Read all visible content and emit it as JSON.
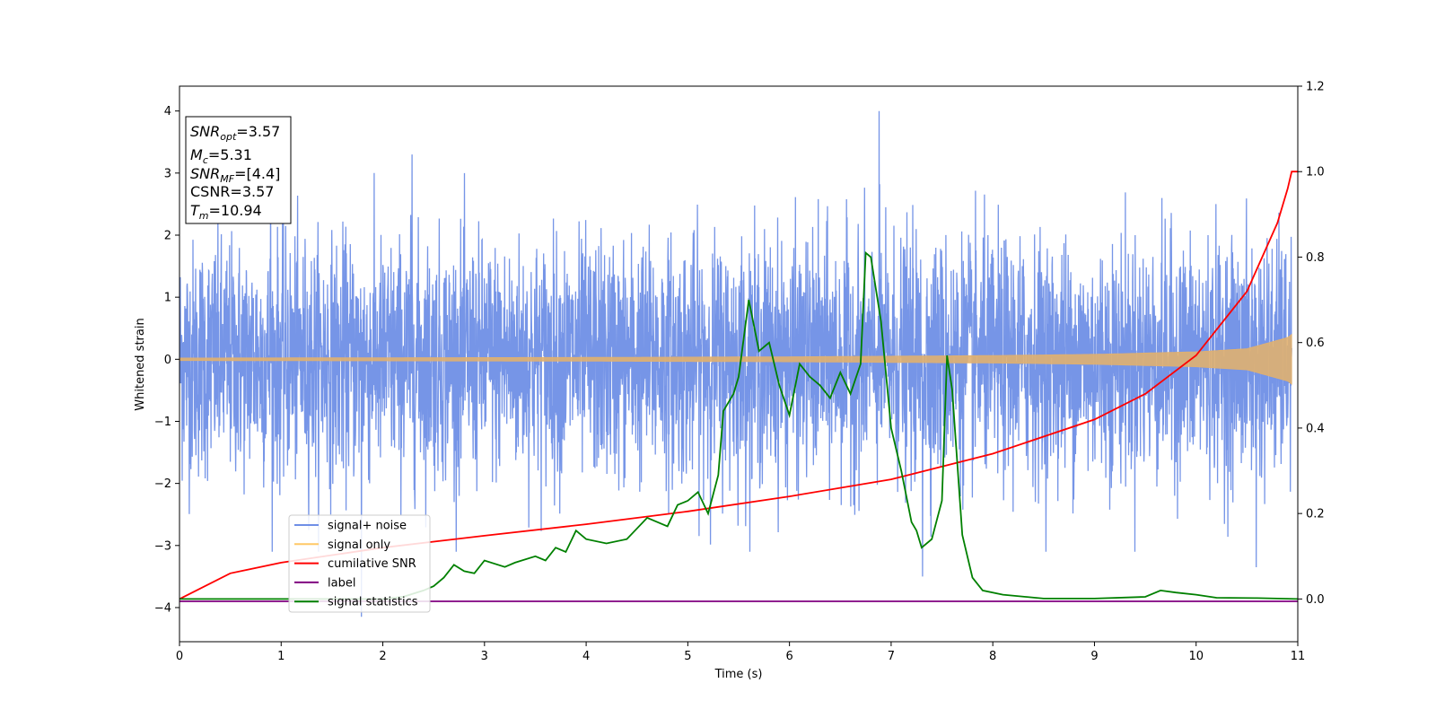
{
  "chart_data": {
    "type": "line",
    "xlabel": "Time (s)",
    "ylabel": "Whitened strain",
    "xlim": [
      0,
      11
    ],
    "ylim": [
      -4.55,
      4.4
    ],
    "y2lim": [
      -0.1,
      1.2
    ],
    "x_ticks": [
      "0",
      "1",
      "2",
      "3",
      "4",
      "5",
      "6",
      "7",
      "8",
      "9",
      "10",
      "11"
    ],
    "y_ticks": [
      "4",
      "3",
      "2",
      "1",
      "0",
      "−1",
      "−2",
      "−3",
      "−4"
    ],
    "y2_ticks": [
      "1.2",
      "1.0",
      "0.8",
      "0.6",
      "0.4",
      "0.2",
      "0.0"
    ],
    "grid": false,
    "legend_position": "lower-left",
    "legend": [
      {
        "label": "signal+ noise",
        "color": "#6f8fe6"
      },
      {
        "label": "signal only",
        "color": "#ffc866"
      },
      {
        "label": "cumilative SNR",
        "color": "#ff0000"
      },
      {
        "label": "label",
        "color": "#800080"
      },
      {
        "label": "signal statistics",
        "color": "#008000"
      }
    ],
    "stats_box": {
      "line1": {
        "var": "SNR",
        "sub": "opt",
        "rest": "=3.57"
      },
      "line2": {
        "var": "M",
        "sub": "c",
        "rest": "=5.31"
      },
      "line3": {
        "var": "SNR",
        "sub": "MF",
        "rest": "=[4.4]"
      },
      "line4": {
        "var": "",
        "sub": "",
        "rest": "CSNR=3.57"
      },
      "line5": {
        "var": "T",
        "sub": "m",
        "rest": "=10.94"
      }
    },
    "series": [
      {
        "name": "signal+ noise",
        "axis": "left",
        "color": "#6f8fe6",
        "noise_std": 0.95,
        "notable_peaks": [
          [
            1.8,
            -4.15
          ],
          [
            6.92,
            4.0
          ],
          [
            0.9,
            3.3
          ],
          [
            2.3,
            3.3
          ],
          [
            7.35,
            -3.5
          ],
          [
            10.65,
            -3.35
          ]
        ]
      },
      {
        "name": "signal only",
        "axis": "left",
        "color": "#e0b070",
        "envelope": [
          [
            0,
            0.02
          ],
          [
            2,
            0.025
          ],
          [
            4,
            0.03
          ],
          [
            6,
            0.04
          ],
          [
            8,
            0.06
          ],
          [
            9,
            0.08
          ],
          [
            10,
            0.12
          ],
          [
            10.5,
            0.17
          ],
          [
            10.9,
            0.35
          ],
          [
            10.94,
            0.4
          ]
        ]
      },
      {
        "name": "cumilative SNR",
        "axis": "right",
        "color": "#ff0000",
        "points": [
          [
            0,
            0.0
          ],
          [
            0.5,
            0.06
          ],
          [
            1,
            0.085
          ],
          [
            2,
            0.12
          ],
          [
            3,
            0.148
          ],
          [
            4,
            0.175
          ],
          [
            5,
            0.205
          ],
          [
            6,
            0.24
          ],
          [
            7,
            0.28
          ],
          [
            8,
            0.34
          ],
          [
            9,
            0.42
          ],
          [
            9.5,
            0.48
          ],
          [
            10,
            0.57
          ],
          [
            10.5,
            0.72
          ],
          [
            10.8,
            0.88
          ],
          [
            10.9,
            0.96
          ],
          [
            10.94,
            1.0
          ],
          [
            11,
            1.0
          ]
        ]
      },
      {
        "name": "label",
        "axis": "left",
        "color": "#800080",
        "points": [
          [
            0,
            -3.9
          ],
          [
            11,
            -3.9
          ]
        ]
      },
      {
        "name": "signal statistics",
        "axis": "right",
        "color": "#008000",
        "points": [
          [
            0,
            0.0
          ],
          [
            2.0,
            0.0
          ],
          [
            2.2,
            0.005
          ],
          [
            2.4,
            0.02
          ],
          [
            2.5,
            0.03
          ],
          [
            2.6,
            0.05
          ],
          [
            2.7,
            0.08
          ],
          [
            2.8,
            0.065
          ],
          [
            2.9,
            0.06
          ],
          [
            3.0,
            0.09
          ],
          [
            3.2,
            0.075
          ],
          [
            3.3,
            0.085
          ],
          [
            3.5,
            0.1
          ],
          [
            3.6,
            0.09
          ],
          [
            3.7,
            0.12
          ],
          [
            3.8,
            0.11
          ],
          [
            3.9,
            0.16
          ],
          [
            4.0,
            0.14
          ],
          [
            4.2,
            0.13
          ],
          [
            4.4,
            0.14
          ],
          [
            4.6,
            0.19
          ],
          [
            4.8,
            0.17
          ],
          [
            4.9,
            0.22
          ],
          [
            5.0,
            0.23
          ],
          [
            5.1,
            0.25
          ],
          [
            5.2,
            0.2
          ],
          [
            5.3,
            0.29
          ],
          [
            5.35,
            0.44
          ],
          [
            5.45,
            0.48
          ],
          [
            5.5,
            0.52
          ],
          [
            5.6,
            0.7
          ],
          [
            5.7,
            0.58
          ],
          [
            5.8,
            0.6
          ],
          [
            5.9,
            0.5
          ],
          [
            6.0,
            0.43
          ],
          [
            6.1,
            0.55
          ],
          [
            6.2,
            0.52
          ],
          [
            6.3,
            0.5
          ],
          [
            6.4,
            0.47
          ],
          [
            6.5,
            0.53
          ],
          [
            6.6,
            0.48
          ],
          [
            6.7,
            0.55
          ],
          [
            6.75,
            0.81
          ],
          [
            6.8,
            0.8
          ],
          [
            6.9,
            0.65
          ],
          [
            7.0,
            0.4
          ],
          [
            7.1,
            0.3
          ],
          [
            7.2,
            0.18
          ],
          [
            7.25,
            0.16
          ],
          [
            7.3,
            0.12
          ],
          [
            7.4,
            0.14
          ],
          [
            7.5,
            0.23
          ],
          [
            7.55,
            0.57
          ],
          [
            7.6,
            0.49
          ],
          [
            7.7,
            0.15
          ],
          [
            7.8,
            0.05
          ],
          [
            7.9,
            0.02
          ],
          [
            8.1,
            0.01
          ],
          [
            8.5,
            0.001
          ],
          [
            9.0,
            0.001
          ],
          [
            9.5,
            0.005
          ],
          [
            9.65,
            0.02
          ],
          [
            9.8,
            0.015
          ],
          [
            10.0,
            0.01
          ],
          [
            10.2,
            0.003
          ],
          [
            10.6,
            0.002
          ],
          [
            11.0,
            0.0
          ]
        ]
      }
    ]
  }
}
